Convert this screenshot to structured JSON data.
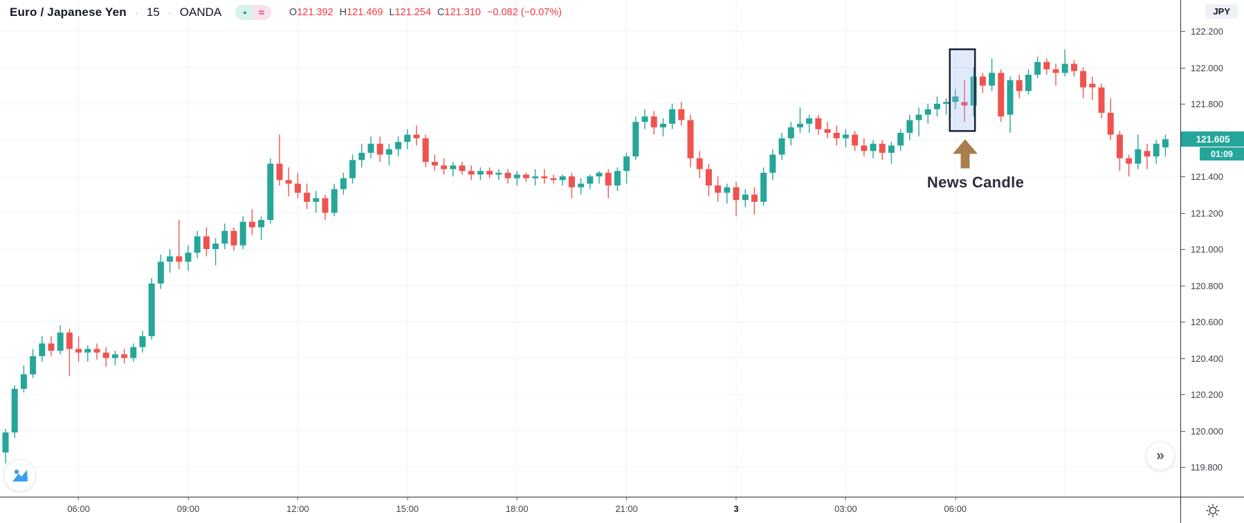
{
  "header": {
    "symbol": "Euro / Japanese Yen",
    "separator": "·",
    "interval": "15",
    "exchange": "OANDA",
    "status_pill": {
      "dot_char": "●",
      "wave_char": "≈"
    },
    "ohlc": {
      "o_label": "O",
      "o_value": "121.392",
      "h_label": "H",
      "h_value": "121.469",
      "l_label": "L",
      "l_value": "121.254",
      "c_label": "C",
      "c_value": "121.310",
      "change": "−0.082 (−0.07%)"
    }
  },
  "price_axis": {
    "currency_badge": "JPY",
    "last_price_label": "121.605",
    "countdown": "01:09",
    "tick_labels": [
      "122.200",
      "122.000",
      "121.800",
      "121.400",
      "121.200",
      "121.000",
      "120.800",
      "120.600",
      "120.400",
      "120.200",
      "120.000",
      "119.800"
    ]
  },
  "time_axis": {
    "ticks": [
      {
        "label": "06:00",
        "index": 8
      },
      {
        "label": "09:00",
        "index": 20
      },
      {
        "label": "12:00",
        "index": 32
      },
      {
        "label": "15:00",
        "index": 44
      },
      {
        "label": "18:00",
        "index": 56
      },
      {
        "label": "21:00",
        "index": 68
      },
      {
        "label": "3",
        "index": 80,
        "bold": true,
        "day_break": true
      },
      {
        "label": "03:00",
        "index": 92
      },
      {
        "label": "06:00",
        "index": 104
      }
    ]
  },
  "annotation": {
    "label": "News Candle",
    "arrow_icon": "up-arrow",
    "highlight_from_index": 104,
    "highlight_to_index": 106,
    "price_top": 122.1,
    "price_bottom": 121.65
  },
  "controls": {
    "collapse_chevron": "»"
  },
  "colors": {
    "up": "#26a69a",
    "down": "#ef5350",
    "price_badge": "#26a69a",
    "value_red": "#f23645",
    "accent_blue": "#39a0f1",
    "arrow_brown": "#a87e4e",
    "grid": "#edf3fa",
    "day_grid": "#dde4ee",
    "highlight_fill": "rgba(147,178,242,0.28)",
    "highlight_border": "#1c2030"
  },
  "chart_data": {
    "type": "candlestick",
    "title": "Euro / Japanese Yen · 15 · OANDA",
    "symbol": "EUR/JPY",
    "interval_minutes": 15,
    "exchange": "OANDA",
    "currency": "JPY",
    "last_price": 121.605,
    "ylim": [
      119.8,
      122.2
    ],
    "price_step": 0.2,
    "grid": true,
    "news_candle_index": 105,
    "gridline_indices": [
      8,
      20,
      32,
      44,
      56,
      68,
      80,
      92,
      104,
      116
    ],
    "candles": [
      [
        119.88,
        120.01,
        119.82,
        119.99
      ],
      [
        119.99,
        120.25,
        119.96,
        120.23
      ],
      [
        120.23,
        120.36,
        120.21,
        120.31
      ],
      [
        120.31,
        120.45,
        120.29,
        120.41
      ],
      [
        120.41,
        120.52,
        120.38,
        120.48
      ],
      [
        120.48,
        120.52,
        120.41,
        120.44
      ],
      [
        120.44,
        120.58,
        120.42,
        120.54
      ],
      [
        120.54,
        120.56,
        120.3,
        120.45
      ],
      [
        120.45,
        120.52,
        120.38,
        120.43
      ],
      [
        120.43,
        120.47,
        120.38,
        120.45
      ],
      [
        120.45,
        120.48,
        120.39,
        120.43
      ],
      [
        120.43,
        120.46,
        120.35,
        120.4
      ],
      [
        120.4,
        120.44,
        120.36,
        120.42
      ],
      [
        120.42,
        120.45,
        120.37,
        120.4
      ],
      [
        120.4,
        120.48,
        120.38,
        120.46
      ],
      [
        120.46,
        120.55,
        120.43,
        120.52
      ],
      [
        120.52,
        120.84,
        120.5,
        120.81
      ],
      [
        120.81,
        120.97,
        120.78,
        120.93
      ],
      [
        120.93,
        121.0,
        120.87,
        120.96
      ],
      [
        120.96,
        121.16,
        120.89,
        120.93
      ],
      [
        120.93,
        121.02,
        120.88,
        120.98
      ],
      [
        120.98,
        121.1,
        120.95,
        121.07
      ],
      [
        121.07,
        121.12,
        120.96,
        121.0
      ],
      [
        121.0,
        121.06,
        120.91,
        121.03
      ],
      [
        121.03,
        121.14,
        121.0,
        121.1
      ],
      [
        121.1,
        121.12,
        120.99,
        121.02
      ],
      [
        121.02,
        121.18,
        121.0,
        121.15
      ],
      [
        121.15,
        121.22,
        121.08,
        121.12
      ],
      [
        121.12,
        121.18,
        121.05,
        121.16
      ],
      [
        121.16,
        121.5,
        121.14,
        121.47
      ],
      [
        121.47,
        121.63,
        121.35,
        121.38
      ],
      [
        121.38,
        121.45,
        121.29,
        121.36
      ],
      [
        121.36,
        121.42,
        121.28,
        121.31
      ],
      [
        121.31,
        121.36,
        121.22,
        121.26
      ],
      [
        121.26,
        121.32,
        121.2,
        121.28
      ],
      [
        121.28,
        121.3,
        121.16,
        121.2
      ],
      [
        121.2,
        121.36,
        121.18,
        121.33
      ],
      [
        121.33,
        121.42,
        121.3,
        121.39
      ],
      [
        121.39,
        121.52,
        121.36,
        121.49
      ],
      [
        121.49,
        121.58,
        121.45,
        121.53
      ],
      [
        121.53,
        121.62,
        121.5,
        121.58
      ],
      [
        121.58,
        121.62,
        121.48,
        121.52
      ],
      [
        121.52,
        121.58,
        121.46,
        121.55
      ],
      [
        121.55,
        121.62,
        121.51,
        121.59
      ],
      [
        121.59,
        121.66,
        121.55,
        121.63
      ],
      [
        121.63,
        121.68,
        121.57,
        121.61
      ],
      [
        121.61,
        121.63,
        121.45,
        121.48
      ],
      [
        121.48,
        121.52,
        121.43,
        121.46
      ],
      [
        121.46,
        121.5,
        121.41,
        121.44
      ],
      [
        121.44,
        121.48,
        121.4,
        121.46
      ],
      [
        121.46,
        121.48,
        121.41,
        121.43
      ],
      [
        121.43,
        121.46,
        121.38,
        121.41
      ],
      [
        121.41,
        121.45,
        121.38,
        121.43
      ],
      [
        121.43,
        121.45,
        121.39,
        121.41
      ],
      [
        121.41,
        121.44,
        121.38,
        121.42
      ],
      [
        121.42,
        121.44,
        121.36,
        121.39
      ],
      [
        121.39,
        121.43,
        121.35,
        121.41
      ],
      [
        121.41,
        121.42,
        121.37,
        121.39
      ],
      [
        121.39,
        121.44,
        121.35,
        121.4
      ],
      [
        121.4,
        121.44,
        121.36,
        121.39
      ],
      [
        121.39,
        121.41,
        121.36,
        121.38
      ],
      [
        121.38,
        121.41,
        121.35,
        121.4
      ],
      [
        121.4,
        121.42,
        121.28,
        121.34
      ],
      [
        121.34,
        121.39,
        121.3,
        121.36
      ],
      [
        121.36,
        121.41,
        121.33,
        121.4
      ],
      [
        121.4,
        121.43,
        121.36,
        121.42
      ],
      [
        121.42,
        121.44,
        121.28,
        121.35
      ],
      [
        121.35,
        121.45,
        121.32,
        121.43
      ],
      [
        121.43,
        121.53,
        121.36,
        121.51
      ],
      [
        121.51,
        121.73,
        121.49,
        121.7
      ],
      [
        121.7,
        121.77,
        121.66,
        121.73
      ],
      [
        121.73,
        121.76,
        121.63,
        121.67
      ],
      [
        121.67,
        121.72,
        121.62,
        121.69
      ],
      [
        121.69,
        121.8,
        121.66,
        121.77
      ],
      [
        121.77,
        121.81,
        121.68,
        121.71
      ],
      [
        121.71,
        121.74,
        121.45,
        121.5
      ],
      [
        121.5,
        121.54,
        121.39,
        121.44
      ],
      [
        121.44,
        121.47,
        121.29,
        121.35
      ],
      [
        121.35,
        121.4,
        121.26,
        121.31
      ],
      [
        121.31,
        121.36,
        121.25,
        121.34
      ],
      [
        121.34,
        121.37,
        121.18,
        121.27
      ],
      [
        121.27,
        121.33,
        121.23,
        121.3
      ],
      [
        121.3,
        121.34,
        121.19,
        121.26
      ],
      [
        121.26,
        121.45,
        121.24,
        121.42
      ],
      [
        121.42,
        121.55,
        121.38,
        121.52
      ],
      [
        121.52,
        121.64,
        121.49,
        121.61
      ],
      [
        121.61,
        121.7,
        121.57,
        121.67
      ],
      [
        121.67,
        121.78,
        121.64,
        121.69
      ],
      [
        121.69,
        121.74,
        121.64,
        121.72
      ],
      [
        121.72,
        121.74,
        121.63,
        121.66
      ],
      [
        121.66,
        121.7,
        121.61,
        121.64
      ],
      [
        121.64,
        121.68,
        121.57,
        121.61
      ],
      [
        121.61,
        121.66,
        121.56,
        121.63
      ],
      [
        121.63,
        121.65,
        121.54,
        121.57
      ],
      [
        121.57,
        121.61,
        121.51,
        121.54
      ],
      [
        121.54,
        121.6,
        121.5,
        121.58
      ],
      [
        121.58,
        121.6,
        121.49,
        121.53
      ],
      [
        121.53,
        121.59,
        121.47,
        121.57
      ],
      [
        121.57,
        121.66,
        121.54,
        121.64
      ],
      [
        121.64,
        121.74,
        121.6,
        121.71
      ],
      [
        121.71,
        121.78,
        121.62,
        121.74
      ],
      [
        121.74,
        121.8,
        121.69,
        121.77
      ],
      [
        121.77,
        121.84,
        121.73,
        121.8
      ],
      [
        121.8,
        121.83,
        121.74,
        121.81
      ],
      [
        121.81,
        121.88,
        121.77,
        121.84
      ],
      [
        121.81,
        121.93,
        121.7,
        121.79
      ],
      [
        121.79,
        122.0,
        121.73,
        121.95
      ],
      [
        121.95,
        121.97,
        121.86,
        121.9
      ],
      [
        121.9,
        122.05,
        121.87,
        121.97
      ],
      [
        121.97,
        121.99,
        121.7,
        121.73
      ],
      [
        121.74,
        121.95,
        121.64,
        121.93
      ],
      [
        121.93,
        121.96,
        121.83,
        121.87
      ],
      [
        121.87,
        121.99,
        121.85,
        121.96
      ],
      [
        121.96,
        122.06,
        121.94,
        122.03
      ],
      [
        122.03,
        122.05,
        121.96,
        121.99
      ],
      [
        121.99,
        122.02,
        121.9,
        121.97
      ],
      [
        121.97,
        122.1,
        121.95,
        122.02
      ],
      [
        122.02,
        122.04,
        121.95,
        121.98
      ],
      [
        121.98,
        122.0,
        121.83,
        121.89
      ],
      [
        121.91,
        121.95,
        121.82,
        121.89
      ],
      [
        121.89,
        121.91,
        121.72,
        121.75
      ],
      [
        121.75,
        121.83,
        121.6,
        121.63
      ],
      [
        121.63,
        121.65,
        121.43,
        121.5
      ],
      [
        121.5,
        121.52,
        121.4,
        121.47
      ],
      [
        121.47,
        121.63,
        121.44,
        121.55
      ],
      [
        121.54,
        121.58,
        121.44,
        121.51
      ],
      [
        121.51,
        121.6,
        121.47,
        121.58
      ],
      [
        121.56,
        121.63,
        121.51,
        121.605
      ]
    ]
  }
}
